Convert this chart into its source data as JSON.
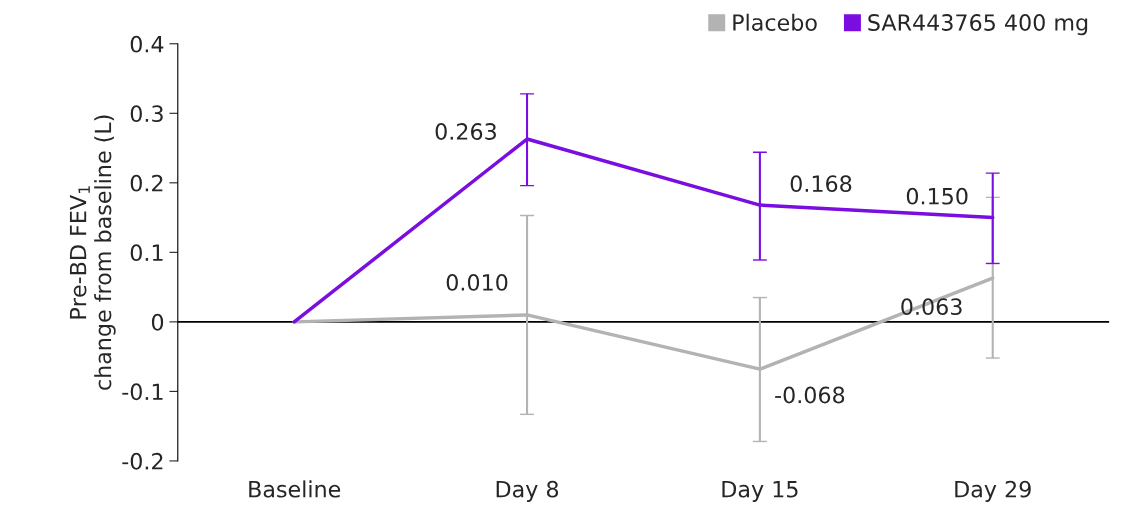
{
  "chart_data": {
    "type": "line",
    "ylabel": "Pre-BD FEV$_{1}$\nchange from baseline (L)",
    "categories": [
      "Baseline",
      "Day 8",
      "Day 15",
      "Day 29"
    ],
    "ylim": [
      -0.2,
      0.4
    ],
    "yticks": [
      {
        "value": -0.2,
        "label": "-0.2"
      },
      {
        "value": -0.1,
        "label": "-0.1"
      },
      {
        "value": 0,
        "label": "0"
      },
      {
        "value": 0.1,
        "label": "0.1"
      },
      {
        "value": 0.2,
        "label": "0.2"
      },
      {
        "value": 0.3,
        "label": "0.3"
      },
      {
        "value": 0.4,
        "label": "0.4"
      }
    ],
    "series": [
      {
        "name": "Placebo",
        "color": "#b3b3b3",
        "values": [
          0,
          0.01,
          -0.068,
          0.063
        ],
        "errors": [
          null,
          [
            -0.133,
            0.153
          ],
          [
            -0.172,
            0.035
          ],
          [
            -0.052,
            0.179
          ]
        ],
        "value_labels": [
          null,
          "0.010",
          "-0.068",
          "0.063"
        ]
      },
      {
        "name": "SAR443765 400 mg",
        "color": "#7a0ee0",
        "values": [
          0,
          0.263,
          0.168,
          0.15
        ],
        "errors": [
          null,
          [
            0.196,
            0.328
          ],
          [
            0.089,
            0.244
          ],
          [
            0.084,
            0.214
          ]
        ],
        "value_labels": [
          null,
          "0.263",
          "0.168",
          "0.150"
        ]
      }
    ],
    "ref_lines": [
      {
        "axis": "y",
        "value": 0,
        "color": "#000000"
      }
    ],
    "marker": "none",
    "line_style": "solid",
    "grid": false,
    "legend": "top right"
  }
}
